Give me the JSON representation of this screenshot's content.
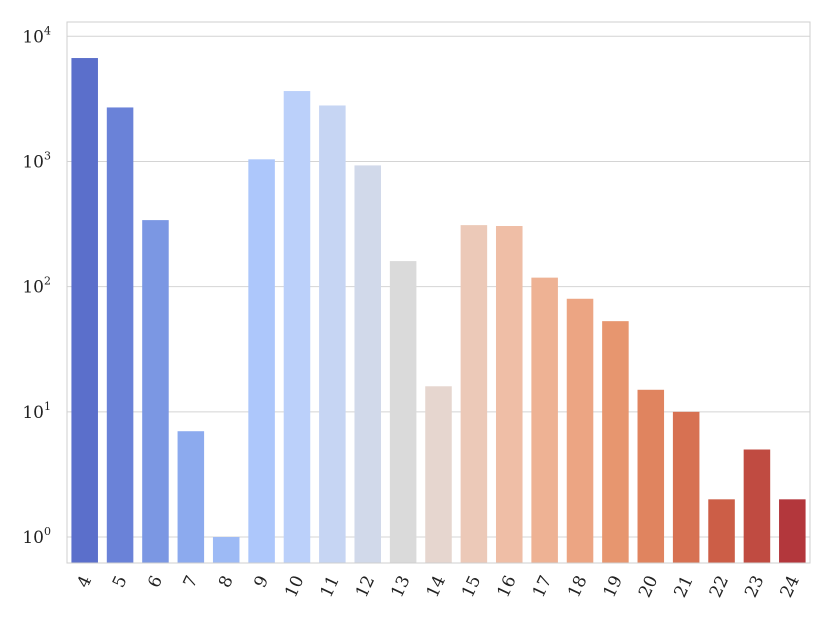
{
  "chart_data": {
    "type": "bar",
    "categories": [
      "4",
      "5",
      "6",
      "7",
      "8",
      "9",
      "10",
      "11",
      "12",
      "13",
      "14",
      "15",
      "16",
      "17",
      "18",
      "19",
      "20",
      "21",
      "22",
      "23",
      "24"
    ],
    "values": [
      6700,
      2700,
      340,
      7,
      1,
      1040,
      3650,
      2800,
      930,
      160,
      16,
      310,
      305,
      118,
      80,
      53,
      15,
      10,
      2,
      5,
      2
    ],
    "colors": [
      "#5b6fcb",
      "#6a82d8",
      "#7b97e3",
      "#8caaee",
      "#9dbaf5",
      "#adc7fb",
      "#bbd0fa",
      "#c6d5f3",
      "#d1d9ea",
      "#dadada",
      "#e6d6cf",
      "#ecc9b8",
      "#efbea6",
      "#eeb294",
      "#eca583",
      "#e7966f",
      "#e0845f",
      "#d77152",
      "#cc5e47",
      "#c04b41",
      "#b3373c"
    ],
    "title": "",
    "xlabel": "",
    "ylabel": "",
    "yscale": "log",
    "ylim": [
      0.62,
      13000
    ],
    "yticks": [
      {
        "base": "10",
        "exp": "0",
        "value": 1
      },
      {
        "base": "10",
        "exp": "1",
        "value": 10
      },
      {
        "base": "10",
        "exp": "2",
        "value": 100
      },
      {
        "base": "10",
        "exp": "3",
        "value": 1000
      },
      {
        "base": "10",
        "exp": "4",
        "value": 10000
      }
    ],
    "grid": true,
    "grid_axis": "y"
  }
}
